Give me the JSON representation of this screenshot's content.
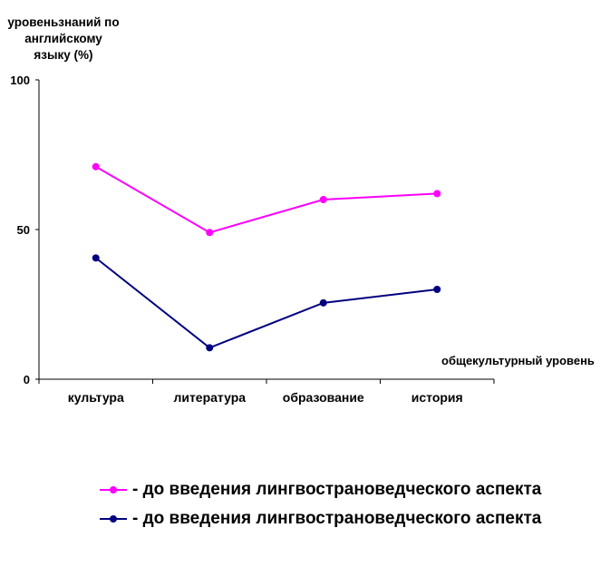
{
  "chart_data": {
    "type": "line",
    "title": "",
    "ylabel_lines": [
      "уровеньзнаний по",
      "английскому",
      "языку (%)"
    ],
    "xlabel": "общекультурный уровень",
    "categories": [
      "культура",
      "литература",
      "образование",
      "история"
    ],
    "yticks": [
      0,
      50,
      100
    ],
    "ylim": [
      0,
      100
    ],
    "grid": false,
    "legend_position": "bottom",
    "series": [
      {
        "name": "- до введения лингвострановедческого аспекта",
        "color": "#ff00ff",
        "values": [
          71,
          49,
          60,
          62
        ]
      },
      {
        "name": "- до введения лингвострановедческого аспекта",
        "color": "#000080",
        "values": [
          40.5,
          10.5,
          25.5,
          30
        ]
      }
    ]
  }
}
